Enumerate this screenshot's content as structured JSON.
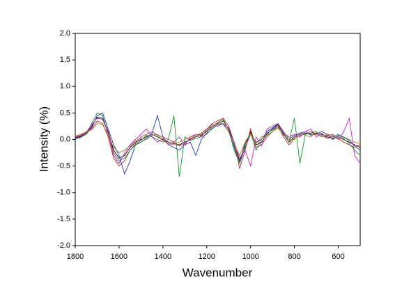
{
  "chart_data": {
    "type": "line",
    "x_label": "Wavenumber",
    "y_label": "Intensity (%)",
    "xlim": [
      1800,
      500
    ],
    "ylim": [
      -2,
      2
    ],
    "xticks": [
      1800,
      1600,
      1400,
      1200,
      1000,
      800,
      600
    ],
    "yticks": [
      {
        "value": -2,
        "label": "-2.0"
      },
      -1.5,
      {
        "value": -1,
        "label": "-1.0"
      },
      -0.5,
      {
        "value": 0,
        "label": "0.0"
      },
      0.5,
      {
        "value": 1,
        "label": "1.0"
      },
      1.5,
      {
        "value": 2,
        "label": "2.0"
      }
    ],
    "x": [
      1800,
      1775,
      1750,
      1725,
      1700,
      1675,
      1650,
      1625,
      1600,
      1575,
      1550,
      1525,
      1500,
      1475,
      1450,
      1425,
      1400,
      1375,
      1350,
      1325,
      1300,
      1275,
      1250,
      1225,
      1200,
      1175,
      1150,
      1125,
      1100,
      1075,
      1050,
      1025,
      1000,
      975,
      950,
      925,
      900,
      875,
      850,
      825,
      800,
      775,
      750,
      725,
      700,
      675,
      650,
      625,
      600,
      575,
      550,
      525,
      500
    ],
    "series": [
      {
        "color": "#000000",
        "values": [
          0.03,
          0.06,
          0.12,
          0.25,
          0.42,
          0.4,
          0.15,
          -0.2,
          -0.35,
          -0.3,
          -0.15,
          -0.05,
          0.0,
          0.05,
          0.1,
          0.05,
          0.0,
          -0.05,
          -0.08,
          -0.1,
          -0.05,
          0.0,
          0.05,
          0.08,
          0.15,
          0.25,
          0.3,
          0.35,
          0.2,
          -0.1,
          -0.4,
          -0.1,
          0.15,
          -0.1,
          -0.05,
          0.1,
          0.2,
          0.28,
          0.1,
          -0.05,
          0.05,
          0.1,
          0.12,
          0.1,
          0.12,
          0.1,
          0.05,
          0.02,
          0.05,
          0.0,
          -0.05,
          -0.1,
          -0.15
        ]
      },
      {
        "color": "#2030d0",
        "values": [
          0.02,
          0.05,
          0.1,
          0.22,
          0.45,
          0.5,
          0.2,
          -0.1,
          -0.3,
          -0.65,
          -0.4,
          -0.1,
          -0.05,
          0.02,
          0.12,
          0.45,
          0.05,
          -0.1,
          -0.15,
          -0.2,
          -0.1,
          -0.05,
          -0.3,
          0.0,
          0.12,
          0.2,
          0.28,
          0.3,
          0.15,
          -0.15,
          -0.45,
          -0.15,
          0.1,
          -0.05,
          0.0,
          0.15,
          0.22,
          0.3,
          0.15,
          0.0,
          0.08,
          0.12,
          0.15,
          0.08,
          0.1,
          0.15,
          0.1,
          0.0,
          0.08,
          0.05,
          -0.02,
          -0.12,
          -0.2
        ]
      },
      {
        "color": "#d02020",
        "values": [
          0.05,
          0.08,
          0.15,
          0.2,
          0.35,
          0.3,
          0.05,
          -0.35,
          -0.5,
          -0.4,
          -0.2,
          -0.08,
          0.05,
          0.1,
          0.15,
          0.08,
          0.05,
          0.0,
          -0.05,
          -0.12,
          -0.08,
          0.02,
          0.08,
          0.1,
          0.2,
          0.3,
          0.35,
          0.4,
          0.25,
          -0.05,
          -0.55,
          -0.2,
          0.2,
          -0.15,
          -0.1,
          0.05,
          0.15,
          0.25,
          0.05,
          -0.1,
          0.02,
          0.08,
          0.1,
          0.15,
          0.1,
          0.05,
          0.08,
          0.05,
          0.02,
          -0.05,
          -0.1,
          -0.15,
          -0.1
        ]
      },
      {
        "color": "#109030",
        "values": [
          0.0,
          0.04,
          0.1,
          0.3,
          0.5,
          0.45,
          0.1,
          -0.25,
          -0.4,
          -0.35,
          -0.2,
          -0.1,
          -0.02,
          0.08,
          0.05,
          0.0,
          -0.05,
          0.0,
          0.45,
          -0.7,
          0.05,
          -0.02,
          0.02,
          0.05,
          0.1,
          0.22,
          0.32,
          0.38,
          0.18,
          -0.2,
          -0.45,
          -0.05,
          0.12,
          -0.2,
          0.0,
          0.12,
          0.18,
          0.25,
          0.12,
          -0.05,
          0.4,
          -0.45,
          0.1,
          0.12,
          0.15,
          0.08,
          0.02,
          0.05,
          0.1,
          0.02,
          -0.08,
          -0.2,
          -0.3
        ]
      },
      {
        "color": "#d020c0",
        "values": [
          0.04,
          0.07,
          0.13,
          0.28,
          0.4,
          0.38,
          0.12,
          -0.3,
          -0.45,
          -0.25,
          -0.1,
          0.0,
          0.1,
          0.2,
          0.05,
          -0.05,
          0.02,
          -0.1,
          -0.05,
          0.05,
          -0.1,
          0.05,
          0.1,
          0.05,
          0.18,
          0.28,
          0.25,
          0.3,
          0.22,
          -0.05,
          -0.35,
          -0.2,
          -0.5,
          0.05,
          -0.12,
          0.2,
          0.25,
          0.3,
          0.12,
          0.05,
          0.1,
          0.05,
          0.15,
          0.2,
          0.05,
          0.12,
          0.02,
          0.1,
          0.0,
          0.15,
          0.4,
          -0.3,
          -0.45
        ]
      },
      {
        "color": "#a08020",
        "values": [
          0.06,
          0.1,
          0.14,
          0.18,
          0.3,
          0.28,
          0.1,
          -0.15,
          -0.25,
          -0.2,
          -0.12,
          -0.02,
          0.02,
          0.0,
          0.08,
          0.1,
          -0.02,
          -0.08,
          -0.1,
          -0.05,
          0.0,
          0.05,
          0.08,
          0.12,
          0.2,
          0.25,
          0.32,
          0.28,
          0.15,
          -0.08,
          -0.3,
          -0.05,
          0.1,
          -0.08,
          0.05,
          0.08,
          0.15,
          0.22,
          0.08,
          0.0,
          0.0,
          0.12,
          0.08,
          0.05,
          0.15,
          0.05,
          0.1,
          0.08,
          0.0,
          0.05,
          0.0,
          -0.05,
          -0.08
        ]
      }
    ]
  }
}
